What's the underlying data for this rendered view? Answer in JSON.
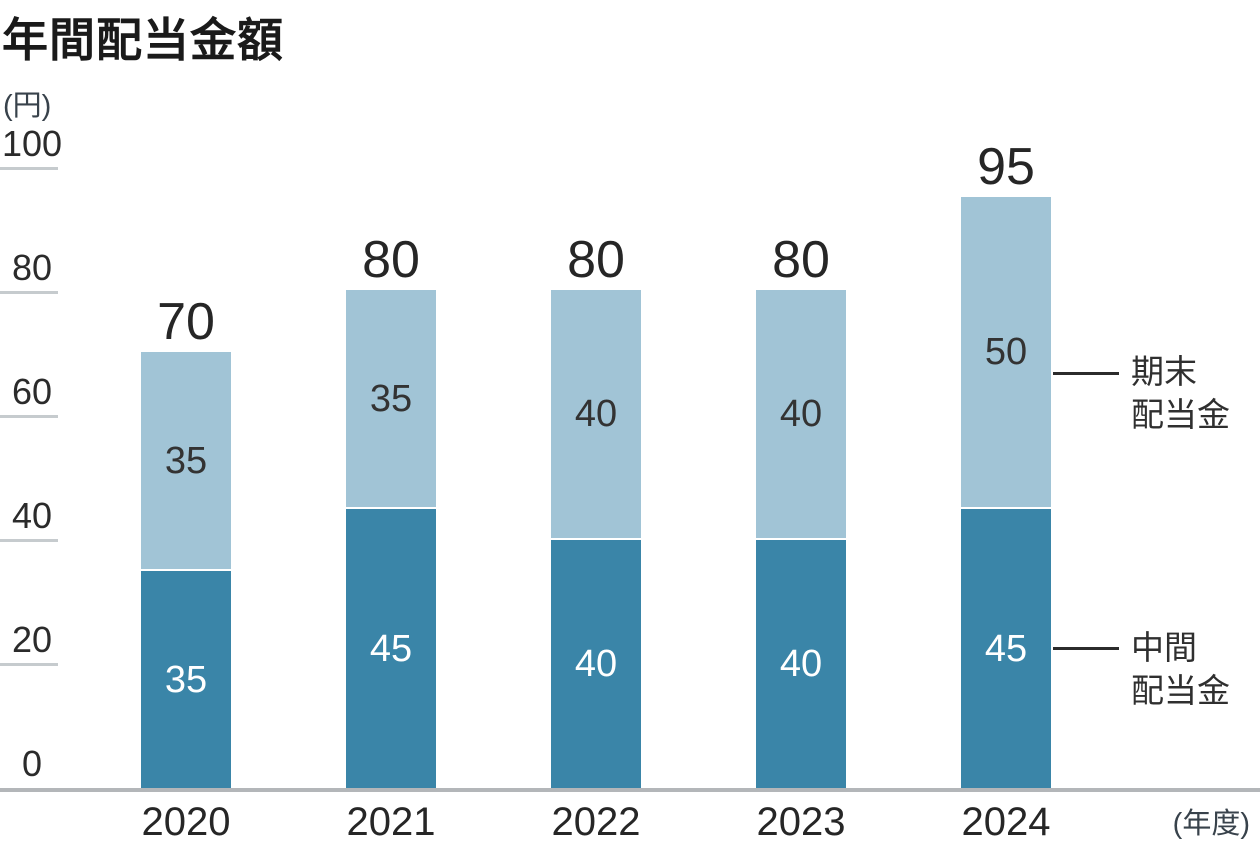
{
  "title": "年間配当金額",
  "y_axis_unit": "(円)",
  "x_axis_unit": "(年度)",
  "colors": {
    "interim_bar": "#3a85a8",
    "yearend_bar": "#a1c4d6",
    "tick_line": "#c6cbce",
    "baseline": "#b3b6b9",
    "text_dark": "#262626",
    "axis_text": "#38424b"
  },
  "legend": {
    "yearend": {
      "line1": "期末",
      "line2": "配当金"
    },
    "interim": {
      "line1": "中間",
      "line2": "配当金"
    }
  },
  "chart_data": {
    "type": "bar",
    "stacked": true,
    "title": "年間配当金額",
    "categories": [
      "2020",
      "2021",
      "2022",
      "2023",
      "2024"
    ],
    "series": [
      {
        "name": "中間配当金",
        "values": [
          35,
          45,
          40,
          40,
          45
        ]
      },
      {
        "name": "期末配当金",
        "values": [
          35,
          35,
          40,
          40,
          50
        ]
      }
    ],
    "totals": [
      70,
      80,
      80,
      80,
      95
    ],
    "ylabel": "(円)",
    "xlabel": "(年度)",
    "ylim": [
      0,
      100
    ],
    "yticks": [
      0,
      20,
      40,
      60,
      80,
      100
    ],
    "grid": false,
    "legend_position": "right"
  }
}
